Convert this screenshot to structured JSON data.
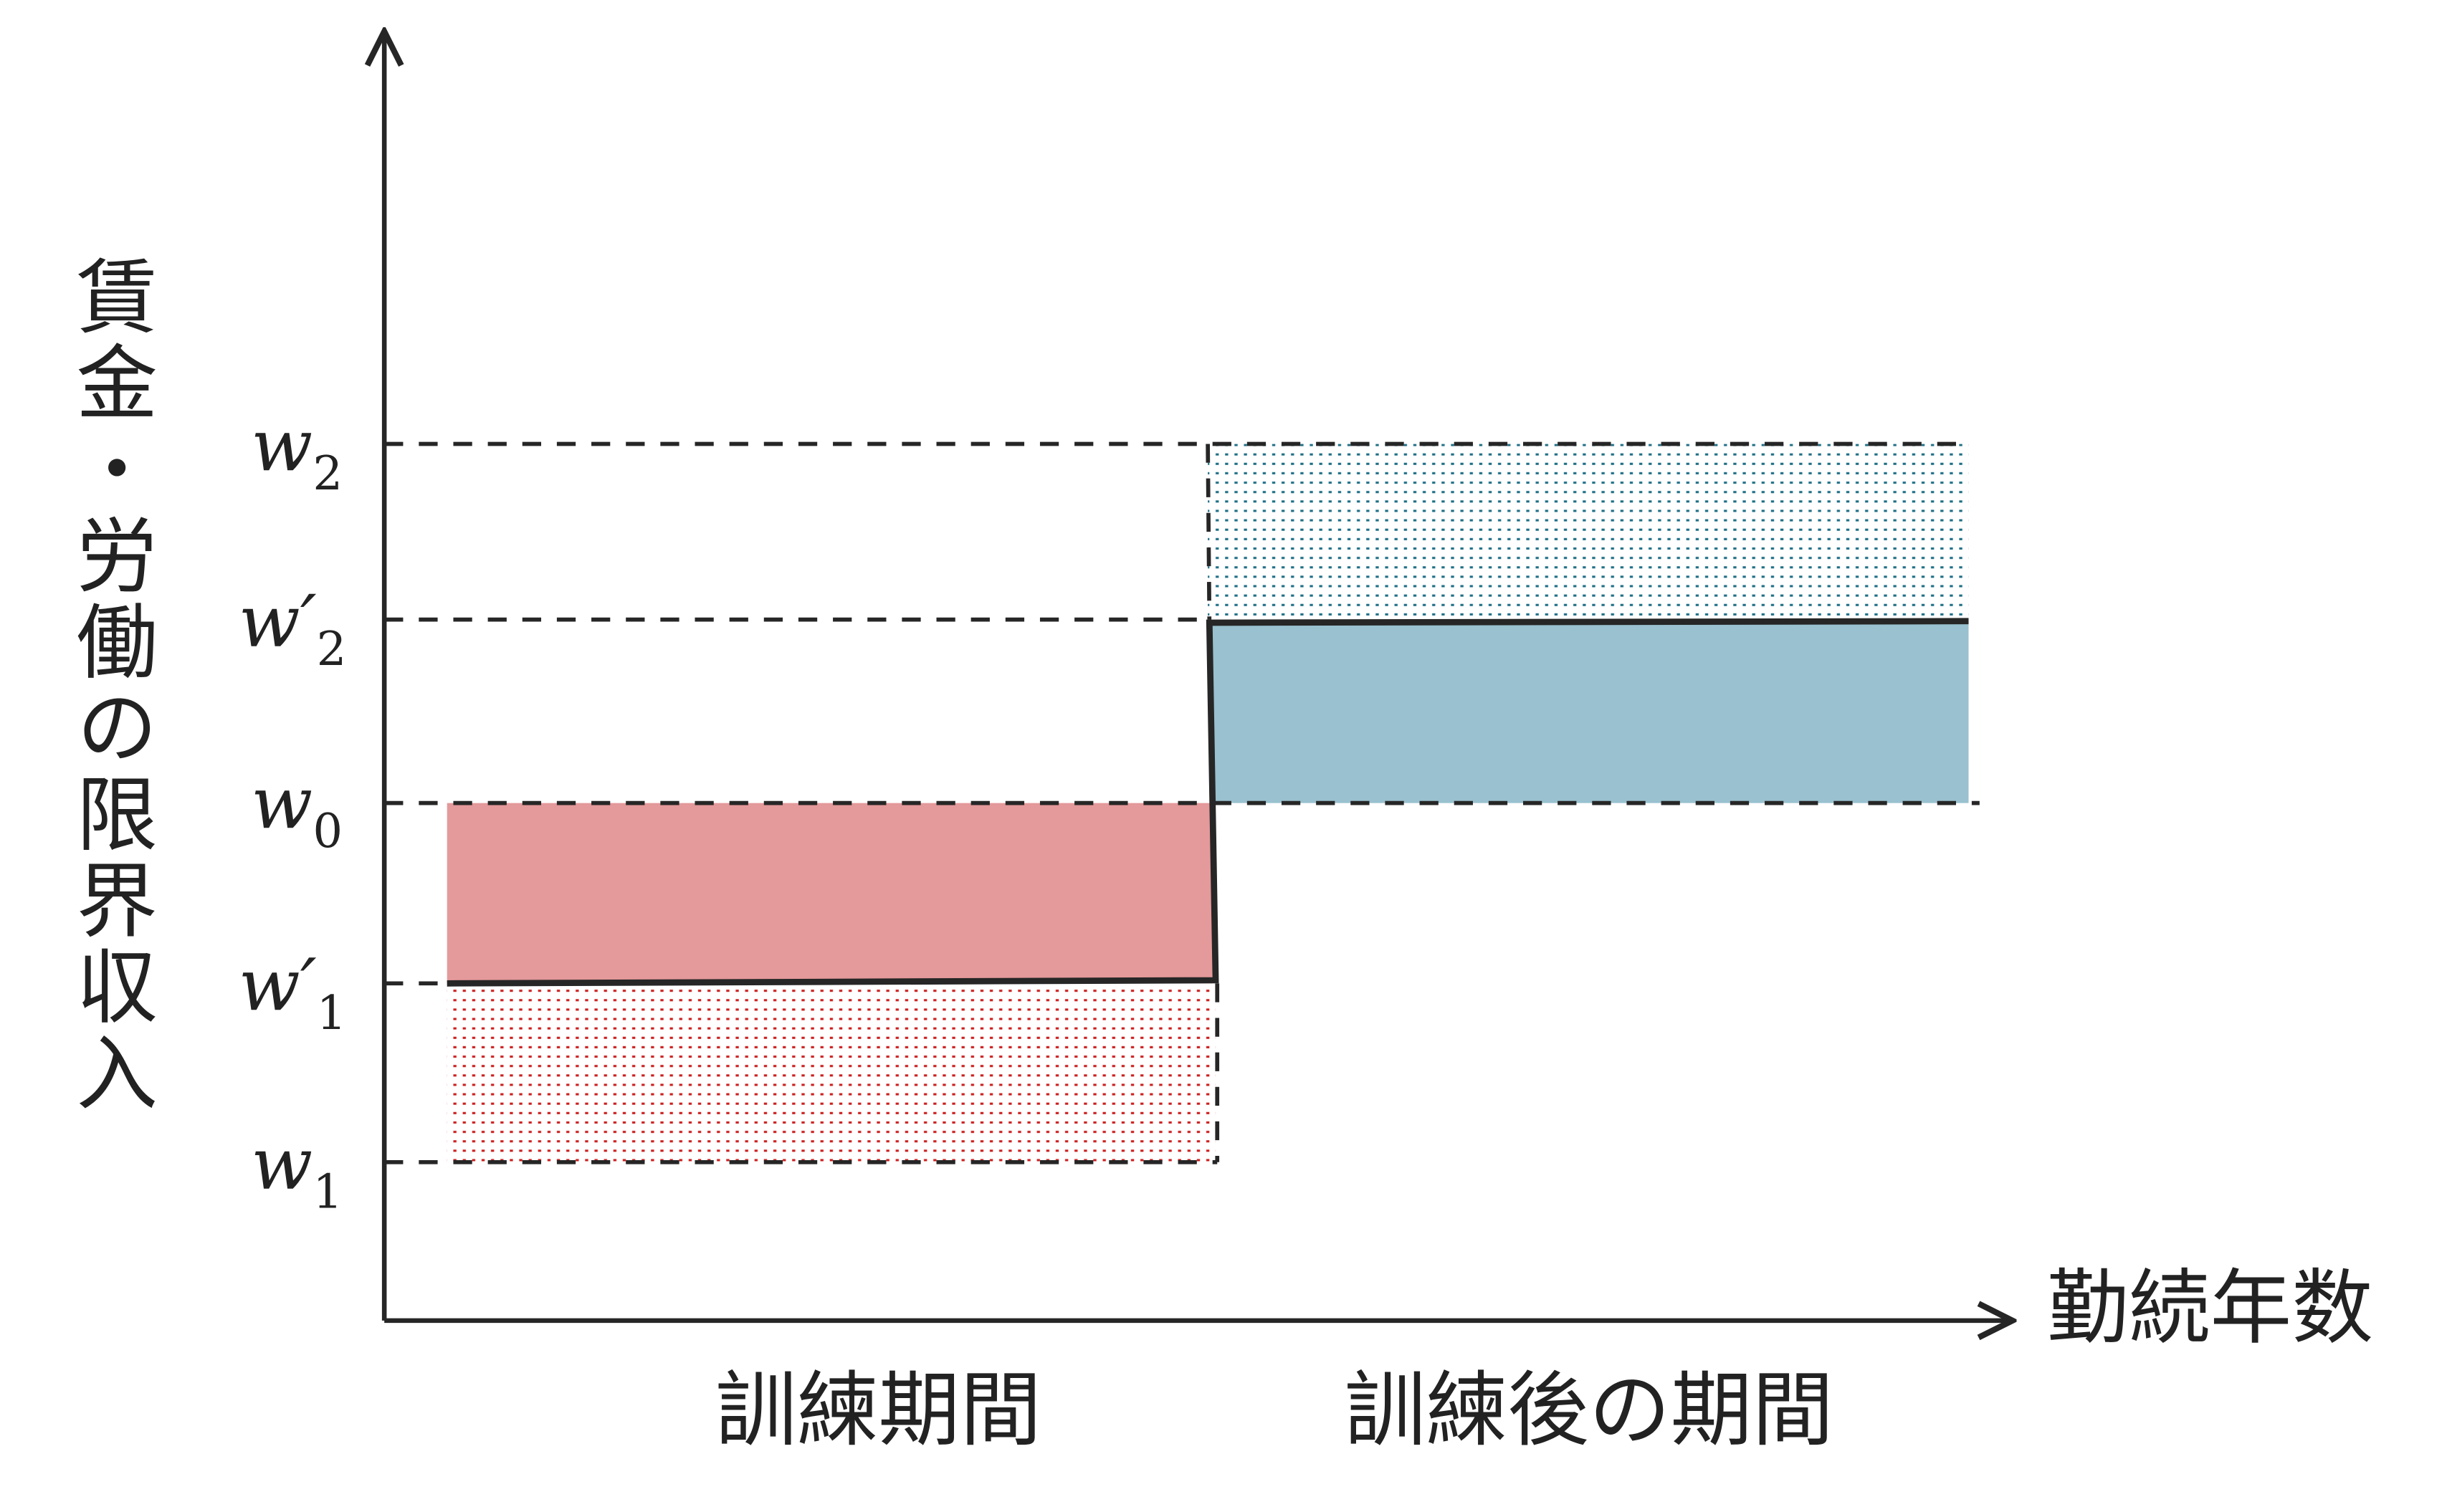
{
  "diagram": {
    "y_axis_label": "賃金・労働の限界収入",
    "x_axis_label": "勤続年数",
    "period_labels": [
      "訓練期間",
      "訓練後の期間"
    ],
    "levels": [
      {
        "id": "w2",
        "base": "w",
        "prime": "",
        "sub": "2"
      },
      {
        "id": "w2p",
        "base": "w",
        "prime": "′",
        "sub": "2"
      },
      {
        "id": "w0",
        "base": "w",
        "prime": "",
        "sub": "0"
      },
      {
        "id": "w1p",
        "base": "w",
        "prime": "′",
        "sub": "1"
      },
      {
        "id": "w1",
        "base": "w",
        "prime": "",
        "sub": "1"
      }
    ],
    "colors": {
      "training_cost_fill": "#e4999a",
      "training_dotted": "#cc1f1f",
      "post_return_fill": "#99c1cf",
      "post_dotted": "#1f6f86",
      "lines": "#262626"
    }
  }
}
